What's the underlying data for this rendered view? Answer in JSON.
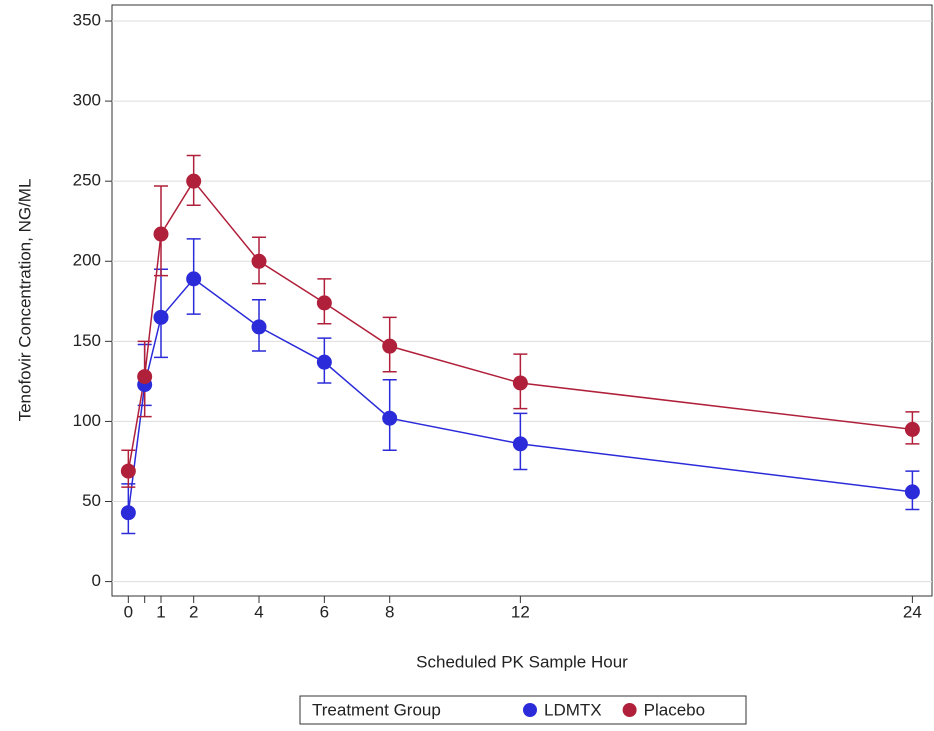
{
  "chart_data": {
    "type": "line",
    "x_label": "Scheduled PK Sample Hour",
    "y_label": "Tenofovir Concentration, NG/ML",
    "legend_title": "Treatment Group",
    "legend_position": "bottom",
    "grid": true,
    "x": [
      0,
      0.5,
      1,
      2,
      4,
      6,
      8,
      12,
      24
    ],
    "series": [
      {
        "name": "LDMTX",
        "color": "#2b2bd9",
        "values": [
          43,
          123,
          165,
          189,
          159,
          137,
          102,
          86,
          56
        ],
        "lower": [
          30,
          110,
          140,
          167,
          144,
          124,
          82,
          70,
          45
        ],
        "upper": [
          61,
          148,
          195,
          214,
          176,
          152,
          126,
          105,
          69
        ]
      },
      {
        "name": "Placebo",
        "color": "#b0203a",
        "values": [
          69,
          128,
          217,
          250,
          200,
          174,
          147,
          124,
          95
        ],
        "lower": [
          59,
          103,
          191,
          235,
          186,
          161,
          131,
          108,
          86
        ],
        "upper": [
          82,
          150,
          247,
          266,
          215,
          189,
          165,
          142,
          106
        ]
      }
    ],
    "xlim": [
      -0.5,
      24.6
    ],
    "xticks": [
      0,
      {
        "value": 0.5,
        "label": null
      },
      1,
      2,
      4,
      6,
      8,
      12,
      24
    ],
    "ylim": [
      -9,
      360
    ],
    "yticks": [
      0,
      50,
      100,
      150,
      200,
      250,
      300,
      350
    ]
  }
}
